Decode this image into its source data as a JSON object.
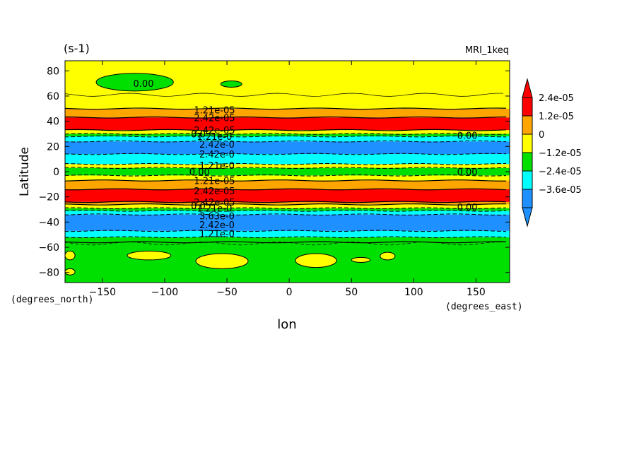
{
  "chart_data": {
    "type": "heatmap",
    "title_left": "(s-1)",
    "title_right": "MRI_1keq",
    "xlabel": "lon",
    "ylabel": "Latitude",
    "x_units": "(degrees_east)",
    "y_units": "(degrees_north)",
    "xlim": [
      -180,
      177
    ],
    "ylim": [
      -88,
      88
    ],
    "xticks": [
      -150,
      -100,
      -50,
      0,
      50,
      100,
      150
    ],
    "xtick_labels": [
      "−150",
      "−100",
      "−50",
      "0",
      "50",
      "100",
      "150"
    ],
    "yticks": [
      -80,
      -60,
      -40,
      -20,
      0,
      20,
      40,
      60,
      80
    ],
    "ytick_labels": [
      "−80",
      "−60",
      "−40",
      "−20",
      "0",
      "20",
      "40",
      "60",
      "80"
    ],
    "colorbar": {
      "levels": [
        -4.8e-05,
        -3.6e-05,
        -2.4e-05,
        -1.2e-05,
        0,
        1.2e-05,
        2.4e-05,
        3.6e-05
      ],
      "colors": [
        "#1e90ff",
        "#00ffff",
        "#00e000",
        "#ffff00",
        "#ffa500",
        "#ff0000"
      ],
      "labels": [
        "2.4e-05",
        "1.2e-05",
        "0",
        "−1.2e-05",
        "−2.4e-05",
        "−3.6e-05"
      ],
      "extend": "both",
      "under_color": "#1e90ff",
      "over_color": "#ff0000"
    },
    "zonal_bands": [
      {
        "lat": [
          -88,
          -56
        ],
        "level": "0 to 1.2e-05",
        "color": "#00e000"
      },
      {
        "lat": [
          -56,
          -52
        ],
        "level": "0 to 1.2e-05",
        "color": "#00e000"
      },
      {
        "lat": [
          -52,
          -47
        ],
        "level": "-2.4e-05 to -1.2e-05",
        "color": "#00ffff"
      },
      {
        "lat": [
          -47,
          -34
        ],
        "level": "-3.6e-05 to -2.4e-05",
        "color": "#1e90ff"
      },
      {
        "lat": [
          -34,
          -31
        ],
        "level": "-2.4e-05 to -1.2e-05",
        "color": "#00ffff"
      },
      {
        "lat": [
          -31,
          -29
        ],
        "level": "-1.2e-05 to 0",
        "color": "#00e000"
      },
      {
        "lat": [
          -29,
          -26
        ],
        "level": "0 to 1.2e-05",
        "color": "#ffff00"
      },
      {
        "lat": [
          -26,
          -24
        ],
        "level": "1.2e-05 to 2.4e-05",
        "color": "#ffa500"
      },
      {
        "lat": [
          -24,
          -14
        ],
        "level": "> 2.4e-05",
        "color": "#ff0000"
      },
      {
        "lat": [
          -14,
          -7
        ],
        "level": "1.2e-05 to 2.4e-05",
        "color": "#ffa500"
      },
      {
        "lat": [
          -7,
          -3
        ],
        "level": "0 to 1.2e-05",
        "color": "#ffff00"
      },
      {
        "lat": [
          -3,
          3
        ],
        "level": "-1.2e-05 to 0",
        "color": "#00e000"
      },
      {
        "lat": [
          3,
          6
        ],
        "level": "0 to 1.2e-05",
        "color": "#ffff00"
      },
      {
        "lat": [
          6,
          14
        ],
        "level": "-2.4e-05 to -1.2e-05",
        "color": "#00ffff"
      },
      {
        "lat": [
          14,
          24
        ],
        "level": "-3.6e-05 to -2.4e-05",
        "color": "#1e90ff"
      },
      {
        "lat": [
          24,
          28
        ],
        "level": "-2.4e-05 to -1.2e-05",
        "color": "#00ffff"
      },
      {
        "lat": [
          28,
          30
        ],
        "level": "-1.2e-05 to 0",
        "color": "#00e000"
      },
      {
        "lat": [
          30,
          33
        ],
        "level": "0 to 1.2e-05",
        "color": "#ffff00"
      },
      {
        "lat": [
          33,
          43
        ],
        "level": "> 2.4e-05",
        "color": "#ff0000"
      },
      {
        "lat": [
          43,
          50
        ],
        "level": "1.2e-05 to 2.4e-05",
        "color": "#ffa500"
      },
      {
        "lat": [
          50,
          88
        ],
        "level": "0 to 1.2e-05",
        "color": "#ffff00"
      }
    ],
    "patches": [
      {
        "lon": [
          -155,
          -93
        ],
        "lat": [
          64,
          78
        ],
        "color": "#00e000"
      },
      {
        "lon": [
          -55,
          -38
        ],
        "lat": [
          67,
          72
        ],
        "color": "#00e000"
      },
      {
        "lon": [
          -130,
          -95
        ],
        "lat": [
          -70,
          -63
        ],
        "color": "#ffff00"
      },
      {
        "lon": [
          -75,
          -33
        ],
        "lat": [
          -77,
          -65
        ],
        "color": "#ffff00"
      },
      {
        "lon": [
          5,
          38
        ],
        "lat": [
          -76,
          -65
        ],
        "color": "#ffff00"
      },
      {
        "lon": [
          50,
          65
        ],
        "lat": [
          -72,
          -68
        ],
        "color": "#ffff00"
      },
      {
        "lon": [
          73,
          85
        ],
        "lat": [
          -70,
          -64
        ],
        "color": "#ffff00"
      },
      {
        "lon": [
          -180,
          -172
        ],
        "lat": [
          -70,
          -63
        ],
        "color": "#ffff00"
      },
      {
        "lon": [
          -180,
          -172
        ],
        "lat": [
          -82,
          -77
        ],
        "color": "#ffff00"
      }
    ],
    "contour_labels": [
      {
        "text": "0.00",
        "lon": -117,
        "lat": 70
      },
      {
        "text": "1.21e-05",
        "lon": -60,
        "lat": 49
      },
      {
        "text": "2.42e-05",
        "lon": -60,
        "lat": 43
      },
      {
        "text": "2.42e-05",
        "lon": -60,
        "lat": 33
      },
      {
        "text": "0.0",
        "lon": -73,
        "lat": 30
      },
      {
        "text": "1.21e-0",
        "lon": -60,
        "lat": 28
      },
      {
        "text": "2.42e-0",
        "lon": -58,
        "lat": 22
      },
      {
        "text": "2.42e-0",
        "lon": -58,
        "lat": 14
      },
      {
        "text": "1.21e-0",
        "lon": -58,
        "lat": 5
      },
      {
        "text": "0.00",
        "lon": -72,
        "lat": 0
      },
      {
        "text": "1.21e-05",
        "lon": -60,
        "lat": -7
      },
      {
        "text": "2.42e-05",
        "lon": -60,
        "lat": -15
      },
      {
        "text": "2.42e-05",
        "lon": -60,
        "lat": -24
      },
      {
        "text": "0.0",
        "lon": -73,
        "lat": -27
      },
      {
        "text": "1.21e-0",
        "lon": -60,
        "lat": -29
      },
      {
        "text": "3.63e-0",
        "lon": -58,
        "lat": -35
      },
      {
        "text": "2.42e-0",
        "lon": -58,
        "lat": -42
      },
      {
        "text": "1.21e-0",
        "lon": -58,
        "lat": -49
      },
      {
        "text": "0.00",
        "lon": 143,
        "lat": 29
      },
      {
        "text": "0.00",
        "lon": 143,
        "lat": 0
      },
      {
        "text": "0.00",
        "lon": 143,
        "lat": -28
      }
    ]
  }
}
